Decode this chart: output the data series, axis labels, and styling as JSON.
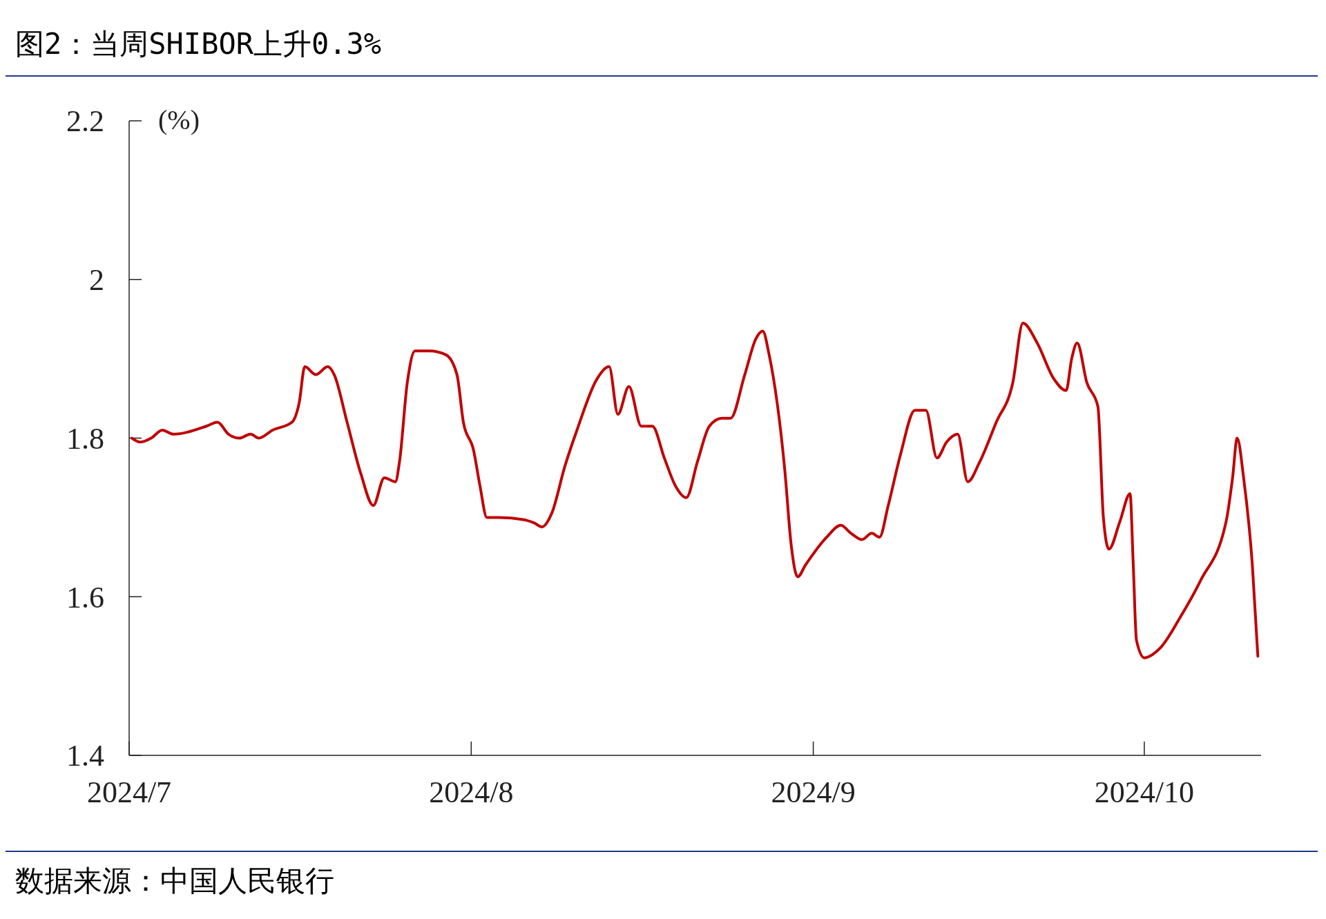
{
  "chart_data": {
    "type": "line",
    "title": "图2：当周SHIBOR上升0.3%",
    "ylabel": "(%)",
    "annotations": [
      "数据来源：中国人民银行"
    ],
    "x": [
      "2024-07-01T06:00",
      "2024-07-02T00:00",
      "2024-07-03T00:00",
      "2024-07-04T00:00",
      "2024-07-05T00:00",
      "2024-07-08T00:00",
      "2024-07-09T00:00",
      "2024-07-10T00:00",
      "2024-07-11T00:00",
      "2024-07-12T00:00",
      "2024-07-12T18:00",
      "2024-07-14T00:00",
      "2024-07-15T18:00",
      "2024-07-16T10:00",
      "2024-07-16T22:00",
      "2024-07-17T22:00",
      "2024-07-19T00:00",
      "2024-07-19T14:00",
      "2024-07-20T18:00",
      "2024-07-22T00:00",
      "2024-07-23T03:00",
      "2024-07-24T03:00",
      "2024-07-25T03:00",
      "2024-07-25T12:00",
      "2024-07-26T05:00",
      "2024-07-26T22:00",
      "2024-07-28T06:00",
      "2024-07-29T17:00",
      "2024-07-30T17:00",
      "2024-07-31T07:00",
      "2024-08-01T05:00",
      "2024-08-01T19:00",
      "2024-08-02T10:00",
      "2024-08-03T12:00",
      "2024-08-05T19:00",
      "2024-08-06T17:00",
      "2024-08-07T10:00",
      "2024-08-08T07:00",
      "2024-08-09T12:00",
      "2024-08-10T14:00",
      "2024-08-12T10:00",
      "2024-08-13T12:00",
      "2024-08-14T07:00",
      "2024-08-15T07:00",
      "2024-08-16T10:00",
      "2024-08-17T10:00",
      "2024-08-18T12:00",
      "2024-08-19T12:00",
      "2024-08-20T12:00",
      "2024-08-21T12:00",
      "2024-08-22T14:00",
      "2024-08-23T17:00",
      "2024-08-24T12:00",
      "2024-08-25T19:00",
      "2024-08-26T19:00",
      "2024-08-27T10:00",
      "2024-08-28T00:00",
      "2024-08-29T10:00",
      "2024-08-30T00:00",
      "2024-08-30T14:00",
      "2024-08-31T07:00",
      "2024-09-02T05:00",
      "2024-09-03T12:00",
      "2024-09-04T10:00",
      "2024-09-05T10:00",
      "2024-09-06T07:00",
      "2024-09-07T00:00",
      "2024-09-07T19:00",
      "2024-09-08T22:00",
      "2024-09-10T05:00",
      "2024-09-11T05:00",
      "2024-09-12T05:00",
      "2024-09-13T02:00",
      "2024-09-14T02:00",
      "2024-09-15T00:00",
      "2024-09-16T02:00",
      "2024-09-17T14:00",
      "2024-09-19T02:00",
      "2024-09-20T00:00",
      "2024-09-21T07:00",
      "2024-09-22T19:00",
      "2024-09-23T22:00",
      "2024-09-24T10:00",
      "2024-09-24T22:00",
      "2024-09-25T19:00",
      "2024-09-26T19:00",
      "2024-09-27T07:00",
      "2024-09-27T19:00",
      "2024-09-28T19:00",
      "2024-09-29T17:00",
      "2024-09-30T00:00",
      "2024-09-30T07:00",
      "2024-10-01T00:00",
      "2024-10-02T10:00",
      "2024-10-04T07:00",
      "2024-10-06T02:00",
      "2024-10-08T10:00",
      "2024-10-09T00:00",
      "2024-10-09T10:00",
      "2024-10-10T00:00",
      "2024-10-10T19:00",
      "2024-10-11T07:00"
    ],
    "series": [
      {
        "color": "#c00000",
        "values": [
          1.8,
          1.795,
          1.8,
          1.81,
          1.805,
          1.815,
          1.82,
          1.805,
          1.8,
          1.805,
          1.8,
          1.81,
          1.82,
          1.845,
          1.89,
          1.88,
          1.89,
          1.88,
          1.82,
          1.755,
          1.715,
          1.75,
          1.745,
          1.77,
          1.87,
          1.91,
          1.91,
          1.905,
          1.88,
          1.82,
          1.785,
          1.74,
          1.7,
          1.7,
          1.697,
          1.693,
          1.688,
          1.705,
          1.765,
          1.81,
          1.875,
          1.89,
          1.83,
          1.865,
          1.815,
          1.815,
          1.775,
          1.74,
          1.725,
          1.77,
          1.815,
          1.825,
          1.825,
          1.88,
          1.925,
          1.935,
          1.905,
          1.76,
          1.665,
          1.625,
          1.64,
          1.675,
          1.69,
          1.68,
          1.672,
          1.68,
          1.675,
          1.715,
          1.78,
          1.835,
          1.835,
          1.775,
          1.795,
          1.805,
          1.745,
          1.77,
          1.82,
          1.87,
          1.945,
          1.92,
          1.875,
          1.86,
          1.9,
          1.92,
          1.87,
          1.84,
          1.7,
          1.66,
          1.695,
          1.73,
          1.64,
          1.545,
          1.523,
          1.535,
          1.575,
          1.62,
          1.695,
          1.75,
          1.8,
          1.75,
          1.64,
          1.525
        ]
      }
    ],
    "xlim": [
      "2024-07-01",
      "2024-10-11T14:00"
    ],
    "xticks": [
      {
        "value": "2024-07-01",
        "label": "2024/7"
      },
      {
        "value": "2024-08-01",
        "label": "2024/8"
      },
      {
        "value": "2024-09-01",
        "label": "2024/9"
      },
      {
        "value": "2024-10-01",
        "label": "2024/10"
      }
    ],
    "ylim": [
      1.4,
      2.2
    ],
    "yticks": [
      1.4,
      1.6,
      1.8,
      2,
      2.2
    ],
    "grid": false,
    "marker": "none",
    "line_style": "solid"
  }
}
